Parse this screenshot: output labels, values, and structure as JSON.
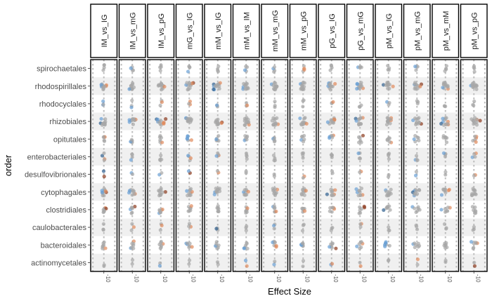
{
  "chart_data": {
    "type": "scatter",
    "title": "",
    "xlabel": "Effect Size",
    "ylabel": "order",
    "x_tick_label": "-10",
    "panels": [
      "IM_vs_IG",
      "IM_vs_mG",
      "IM_vs_pG",
      "mG_vs_IG",
      "mM_vs_IG",
      "mM_vs_IM",
      "mM_vs_mG",
      "mM_vs_pG",
      "pG_vs_IG",
      "pG_vs_mG",
      "pM_vs_IG",
      "pM_vs_mG",
      "pM_vs_mM",
      "pM_vs_pG"
    ],
    "categories": [
      "spirochaetales",
      "rhodospirillales",
      "rhodocyclales",
      "rhizobiales",
      "opitutales",
      "enterobacteriales",
      "desulfovibrionales",
      "cytophagales",
      "clostridiales",
      "caulobacterales",
      "bacteroidales",
      "actinomycetales"
    ],
    "xlim": [
      -12,
      12
    ],
    "x_ticks": [
      -10,
      0,
      10
    ],
    "grid": "light gray dotted",
    "legend": "none",
    "colors": {
      "neutral": "#a6a6a6",
      "positive_strong": "#8b3a1e",
      "positive": "#e08a5c",
      "negative": "#6a9fd4",
      "negative_strong": "#2f5f8f",
      "band": "#f0f0f0",
      "gridline": "#bdbdbd"
    },
    "spread": {
      "IM_vs_IG": [
        1.5,
        4,
        1.5,
        4,
        2,
        1.5,
        0,
        3,
        2.5,
        1.5,
        3,
        1
      ],
      "IM_vs_mG": [
        2,
        5,
        1.5,
        5,
        3,
        2,
        1,
        5,
        3,
        2,
        3,
        1
      ],
      "IM_vs_pG": [
        2,
        5,
        2,
        5,
        2.5,
        2,
        2,
        5,
        3,
        2,
        3,
        1.5
      ],
      "mG_vs_IG": [
        2,
        5,
        1.5,
        5,
        3,
        2,
        1,
        4,
        3,
        2,
        4,
        1
      ],
      "mM_vs_IG": [
        2,
        5,
        1.5,
        5,
        2.5,
        2,
        1,
        5,
        2.5,
        1.5,
        4,
        1
      ],
      "mM_vs_IM": [
        2,
        5,
        1.5,
        5,
        3,
        2,
        1,
        4,
        2.5,
        1.5,
        3,
        1
      ],
      "mM_vs_mG": [
        2,
        5,
        1.5,
        5,
        2.5,
        2,
        1,
        4,
        3,
        1.5,
        3,
        1
      ],
      "mM_vs_pG": [
        2,
        5,
        1.5,
        5,
        3,
        2,
        2,
        4,
        3,
        2,
        3,
        1
      ],
      "pG_vs_IG": [
        2.5,
        5,
        2,
        5,
        3,
        2,
        2,
        5,
        4,
        2,
        4,
        1
      ],
      "pG_vs_mG": [
        3,
        5,
        3,
        5,
        3,
        2.5,
        2,
        5,
        5,
        2,
        5,
        1
      ],
      "pM_vs_IG": [
        3,
        6,
        3,
        5,
        4,
        3,
        2,
        5,
        6,
        2,
        5,
        1
      ],
      "pM_vs_mG": [
        3,
        5,
        3,
        5,
        4,
        3,
        2,
        5,
        6,
        2,
        5,
        1.5
      ],
      "pM_vs_mM": [
        3,
        5,
        3,
        5,
        4,
        3,
        2,
        5,
        6,
        2,
        4,
        1
      ],
      "pM_vs_pG": [
        3,
        6,
        3,
        6,
        4,
        3,
        2,
        5,
        6,
        2,
        5,
        1
      ]
    },
    "point_counts": [
      4,
      12,
      3,
      12,
      6,
      4,
      2,
      10,
      7,
      3,
      7,
      2
    ]
  }
}
